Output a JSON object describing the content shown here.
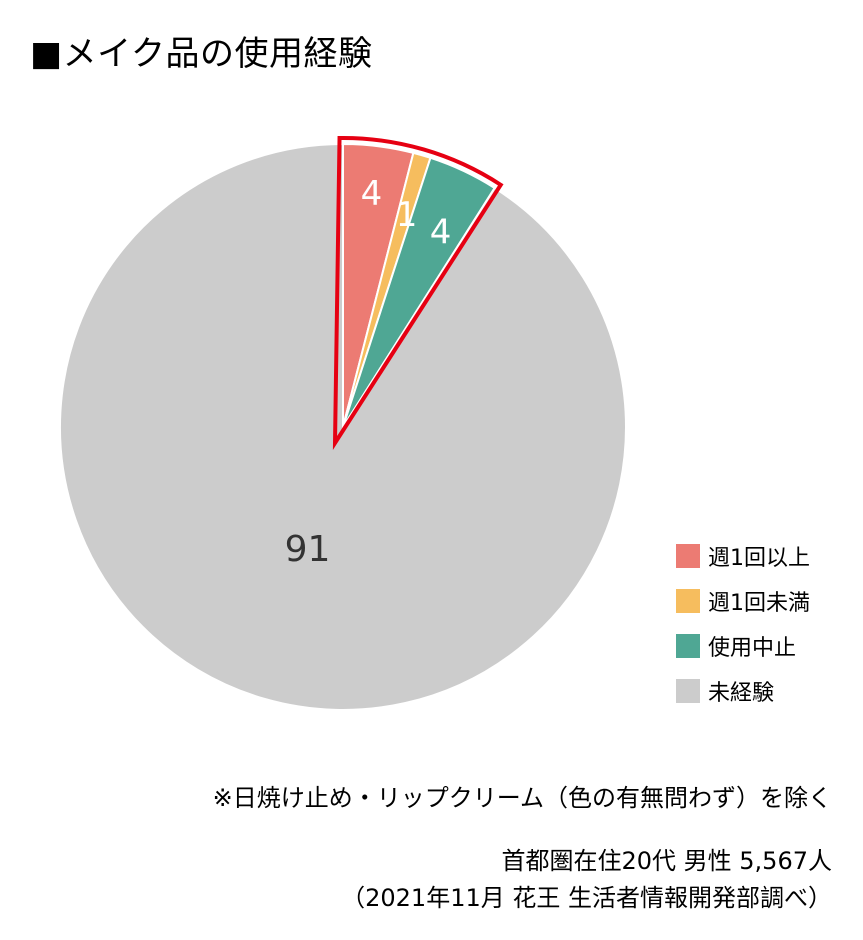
{
  "title": "■メイク品の使用経験",
  "chart_data": {
    "type": "pie",
    "title": "■メイク品の使用経験",
    "unit": "%",
    "start": "12 o'clock",
    "direction": "clockwise",
    "slices": [
      {
        "label": "週1回以上",
        "value": 4,
        "color": "#ec7b73",
        "data_label": "4"
      },
      {
        "label": "週1回未満",
        "value": 1,
        "color": "#f6bd5e",
        "data_label": "1"
      },
      {
        "label": "使用中止",
        "value": 4,
        "color": "#4fa794",
        "data_label": "4"
      },
      {
        "label": "未経験",
        "value": 91,
        "color": "#cccccc",
        "data_label": "91"
      }
    ],
    "highlight": {
      "slices": [
        "週1回以上",
        "週1回未満",
        "使用中止"
      ],
      "color": "#e60012"
    },
    "legend_position": "right"
  },
  "legend": [
    "週1回以上",
    "週1回未満",
    "使用中止",
    "未経験"
  ],
  "note": "※日焼け止め・リップクリーム（色の有無問わず）を除く",
  "source_line1": "首都圏在住20代 男性 5,567人",
  "source_line2": "（2021年11月 花王 生活者情報開発部調べ）"
}
